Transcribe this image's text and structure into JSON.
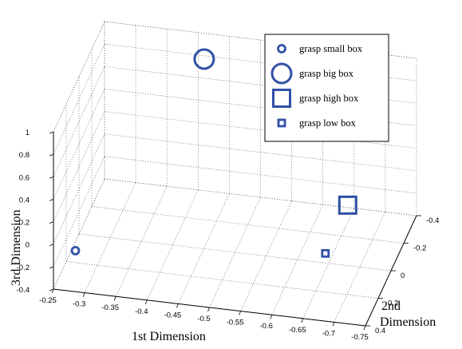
{
  "chart_data": {
    "type": "scatter",
    "projection": "3d",
    "title": "",
    "xlabel": "1st Dimension",
    "ylabel_lines": [
      "2nd",
      "Dimension"
    ],
    "zlabel": "3rd Dimension",
    "xlim": [
      -0.25,
      -0.75
    ],
    "ylim": [
      -0.4,
      0.4
    ],
    "zlim": [
      -0.4,
      1
    ],
    "x_ticks": [
      "-0.25",
      "-0.3",
      "-0.35",
      "-0.4",
      "-0.45",
      "-0.5",
      "-0.55",
      "-0.6",
      "-0.65",
      "-0.7",
      "-0.75"
    ],
    "y_ticks": [
      "-0.4",
      "-0.2",
      "0",
      "0.2",
      "0.4"
    ],
    "z_ticks": [
      "-0.4",
      "-0.2",
      "0",
      "0.2",
      "0.4",
      "0.6",
      "0.8",
      "1"
    ],
    "grid": true,
    "legend_position": "top-right",
    "series": [
      {
        "name": "grasp small box",
        "marker": "circle",
        "marker_size": "small",
        "color": "#3150a6",
        "points": [
          {
            "x": -0.28,
            "y": 0.35,
            "z": -0.1
          }
        ]
      },
      {
        "name": "grasp big box",
        "marker": "circle",
        "marker_size": "large",
        "color": "#3150a6",
        "points": [
          {
            "x": -0.42,
            "y": -0.3,
            "z": 0.9
          }
        ]
      },
      {
        "name": "grasp high box",
        "marker": "square",
        "marker_size": "large",
        "color": "#3150a6",
        "points": [
          {
            "x": -0.65,
            "y": -0.3,
            "z": -0.25
          }
        ]
      },
      {
        "name": "grasp low box",
        "marker": "square",
        "marker_size": "small",
        "color": "#3150a6",
        "points": [
          {
            "x": -0.65,
            "y": 0.05,
            "z": -0.25
          }
        ]
      }
    ]
  }
}
